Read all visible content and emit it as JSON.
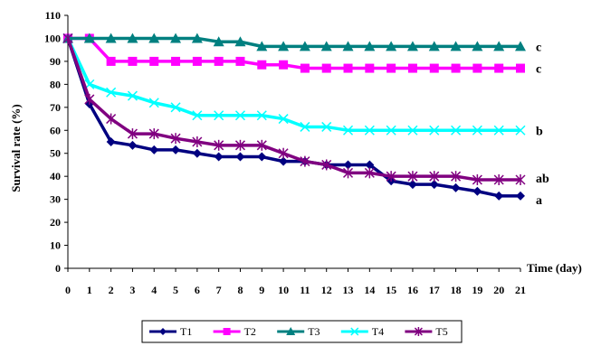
{
  "chart_data": {
    "type": "line",
    "title": "",
    "xlabel": "Time (day)",
    "ylabel": "Survival rate (%)",
    "xlim": [
      0,
      21
    ],
    "ylim": [
      0,
      110
    ],
    "x": [
      0,
      1,
      2,
      3,
      4,
      5,
      6,
      7,
      8,
      9,
      10,
      11,
      12,
      13,
      14,
      15,
      16,
      17,
      18,
      19,
      20,
      21
    ],
    "y_ticks": [
      0,
      10,
      20,
      30,
      40,
      50,
      60,
      70,
      80,
      90,
      100,
      110
    ],
    "grid": false,
    "legend": "bottom",
    "series": [
      {
        "name": "T1",
        "color": "#000080",
        "marker": "diamond",
        "values": [
          100,
          71.5,
          55,
          53.5,
          51.5,
          51.5,
          50,
          48.5,
          48.5,
          48.5,
          46.5,
          46.5,
          45,
          45,
          45,
          38,
          36.5,
          36.5,
          35,
          33.5,
          31.5,
          31.5
        ],
        "label": "a"
      },
      {
        "name": "T2",
        "color": "#ff00ff",
        "marker": "square",
        "values": [
          100,
          100,
          90,
          90,
          90,
          90,
          90,
          90,
          90,
          88.5,
          88.5,
          87,
          87,
          87,
          87,
          87,
          87,
          87,
          87,
          87,
          87,
          87
        ],
        "label": "c"
      },
      {
        "name": "T3",
        "color": "#008080",
        "marker": "triangle",
        "values": [
          100,
          100,
          100,
          100,
          100,
          100,
          100,
          98.5,
          98.5,
          96.5,
          96.5,
          96.5,
          96.5,
          96.5,
          96.5,
          96.5,
          96.5,
          96.5,
          96.5,
          96.5,
          96.5,
          96.5
        ],
        "label": "c"
      },
      {
        "name": "T4",
        "color": "#00ffff",
        "marker": "x",
        "values": [
          100,
          80,
          76.5,
          75,
          72,
          70,
          66.5,
          66.5,
          66.5,
          66.5,
          65,
          61.5,
          61.5,
          60,
          60,
          60,
          60,
          60,
          60,
          60,
          60,
          60
        ],
        "label": "b"
      },
      {
        "name": "T5",
        "color": "#800080",
        "marker": "star",
        "values": [
          100,
          73.5,
          65,
          58.5,
          58.5,
          56.5,
          55,
          53.5,
          53.5,
          53.5,
          50,
          46.5,
          45,
          41.5,
          41.5,
          40,
          40,
          40,
          40,
          38.5,
          38.5,
          38.5
        ],
        "label": "ab"
      }
    ]
  }
}
